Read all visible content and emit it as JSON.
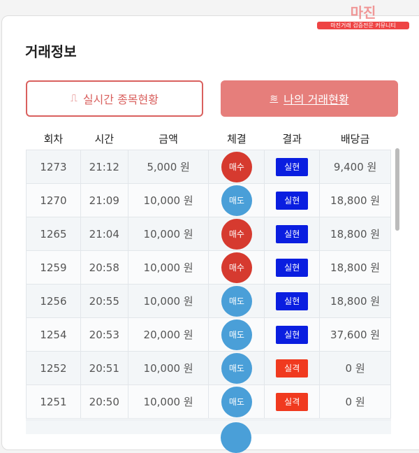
{
  "watermark": {
    "logo": "마진",
    "tagline": "마진거래 검증전문 커뮤니티"
  },
  "header": {
    "title": "거래정보"
  },
  "tabs": [
    "실시간 종목현황",
    "나의 거래현황"
  ],
  "table": {
    "columns": [
      "회차",
      "시간",
      "금액",
      "체결",
      "결과",
      "배당금"
    ],
    "rows": [
      [
        "1273",
        "21:12",
        "5,000 원",
        "매수",
        "실현",
        "9,400 원"
      ],
      [
        "1270",
        "21:09",
        "10,000 원",
        "매도",
        "실현",
        "18,800 원"
      ],
      [
        "1265",
        "21:04",
        "10,000 원",
        "매수",
        "실현",
        "18,800 원"
      ],
      [
        "1259",
        "20:58",
        "10,000 원",
        "매수",
        "실현",
        "18,800 원"
      ],
      [
        "1256",
        "20:55",
        "10,000 원",
        "매도",
        "실현",
        "18,800 원"
      ],
      [
        "1254",
        "20:53",
        "20,000 원",
        "매도",
        "실현",
        "37,600 원"
      ],
      [
        "1252",
        "20:51",
        "10,000 원",
        "매도",
        "실격",
        "0 원"
      ],
      [
        "1251",
        "20:50",
        "10,000 원",
        "매도",
        "실격",
        "0 원"
      ]
    ]
  }
}
